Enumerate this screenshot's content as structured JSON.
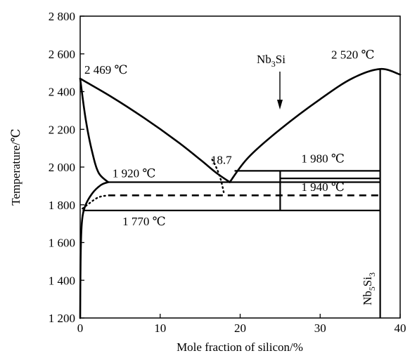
{
  "chart_data": {
    "type": "line",
    "xlabel": "Mole fraction of silicon/%",
    "ylabel": "Temperature/℃",
    "xlim": [
      0,
      40
    ],
    "ylim": [
      1200,
      2800
    ],
    "x_ticks": [
      0,
      10,
      20,
      30,
      40
    ],
    "y_ticks": [
      1200,
      1400,
      1600,
      1800,
      2000,
      2200,
      2400,
      2600,
      2800
    ],
    "x_tick_labels": [
      "0",
      "10",
      "20",
      "30",
      "40"
    ],
    "y_tick_labels": [
      "1 200",
      "1 400",
      "1 600",
      "1 800",
      "2 000",
      "2 200",
      "2 400",
      "2 600",
      "2 800"
    ],
    "grid": false,
    "annotations": [
      {
        "id": "nb-melting",
        "text": "2 469 ℃",
        "x": 0,
        "y": 2469
      },
      {
        "id": "nb5si3-melting",
        "text": "2 520 ℃",
        "x": 37.5,
        "y": 2520
      },
      {
        "id": "eutectic-comp",
        "text": "18.7",
        "x": 18.7,
        "y": 1920
      },
      {
        "id": "eutectic-temp",
        "text": "1 920 ℃",
        "x": 3.5,
        "y": 1920
      },
      {
        "id": "peritectic-temp",
        "text": "1 980 ℃",
        "x": 25,
        "y": 1980
      },
      {
        "id": "nb3si-decomp-temp",
        "text": "1 940 ℃",
        "x": 25,
        "y": 1940
      },
      {
        "id": "eutectoid-temp",
        "text": "1 770 ℃",
        "x": 3,
        "y": 1770
      }
    ],
    "phase_labels": {
      "nb3si": {
        "base": "Nb",
        "sub": "3",
        "tail": "Si"
      },
      "nb5si3": {
        "base": "Nb",
        "sub1": "5",
        "mid": "Si",
        "sub2": "3"
      }
    },
    "series": [
      {
        "id": "liquidus-left",
        "style": "solid",
        "x": [
          0,
          4,
          8,
          12,
          15,
          17,
          18.7
        ],
        "y": [
          2469,
          2370,
          2260,
          2140,
          2040,
          1970,
          1920
        ]
      },
      {
        "id": "liquidus-right",
        "style": "solid",
        "x": [
          18.7,
          21,
          25,
          30,
          34,
          37.5,
          40
        ],
        "y": [
          1920,
          2050,
          2200,
          2360,
          2470,
          2520,
          2490
        ]
      },
      {
        "id": "solidus",
        "style": "solid",
        "x": [
          0,
          0.7,
          1.5,
          2.3,
          3.5
        ],
        "y": [
          2469,
          2250,
          2080,
          1970,
          1920
        ]
      },
      {
        "id": "solvus",
        "style": "solid",
        "x": [
          0,
          0.05,
          0.2,
          0.6,
          1.5,
          2.6,
          3.5
        ],
        "y": [
          1200,
          1500,
          1700,
          1790,
          1860,
          1905,
          1920
        ]
      },
      {
        "id": "solvus-metastable",
        "style": "dotted",
        "x": [
          0.3,
          1.2,
          2.3,
          3.5
        ],
        "y": [
          1780,
          1810,
          1840,
          1850
        ]
      },
      {
        "id": "liquidus-metastable",
        "style": "dotted",
        "x": [
          16.5,
          17.1,
          17.6,
          18
        ],
        "y": [
          2040,
          1990,
          1930,
          1855
        ]
      },
      {
        "id": "eutectic-line",
        "style": "solid",
        "x": [
          3.5,
          37.5
        ],
        "y": [
          1920,
          1920
        ]
      },
      {
        "id": "peritectic-line",
        "style": "solid",
        "x": [
          19.3,
          37.5
        ],
        "y": [
          1980,
          1980
        ]
      },
      {
        "id": "nb3si-decomp-line",
        "style": "solid",
        "x": [
          25,
          37.5
        ],
        "y": [
          1940,
          1940
        ]
      },
      {
        "id": "metastable-eutectic",
        "style": "dashed",
        "x": [
          3.5,
          37.5
        ],
        "y": [
          1850,
          1850
        ]
      },
      {
        "id": "eutectoid-line",
        "style": "solid",
        "x": [
          0.3,
          37.5
        ],
        "y": [
          1770,
          1770
        ]
      },
      {
        "id": "nb3si-line",
        "style": "solid",
        "x": [
          25,
          25
        ],
        "y": [
          1770,
          1980
        ]
      },
      {
        "id": "nb5si3-line",
        "style": "solid",
        "x": [
          37.5,
          37.5
        ],
        "y": [
          1200,
          2520
        ]
      }
    ]
  }
}
